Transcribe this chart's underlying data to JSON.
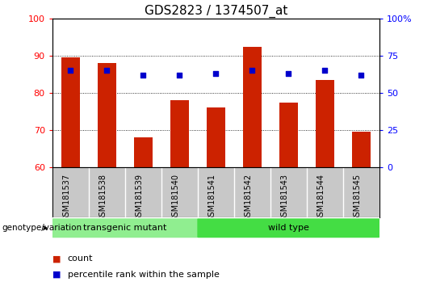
{
  "title": "GDS2823 / 1374507_at",
  "samples": [
    "GSM181537",
    "GSM181538",
    "GSM181539",
    "GSM181540",
    "GSM181541",
    "GSM181542",
    "GSM181543",
    "GSM181544",
    "GSM181545"
  ],
  "bar_values": [
    89.5,
    88.0,
    68.0,
    78.0,
    76.0,
    92.5,
    77.5,
    83.5,
    69.5
  ],
  "dot_values_pct": [
    65,
    65,
    62,
    62,
    63,
    65,
    63,
    65,
    62
  ],
  "ylim_left": [
    60,
    100
  ],
  "ylim_right": [
    0,
    100
  ],
  "yticks_left": [
    60,
    70,
    80,
    90,
    100
  ],
  "yticks_right": [
    0,
    25,
    50,
    75,
    100
  ],
  "ytick_labels_right": [
    "0",
    "25",
    "50",
    "75",
    "100%"
  ],
  "bar_color": "#cc2200",
  "dot_color": "#0000cc",
  "bar_width": 0.5,
  "groups": [
    {
      "label": "transgenic mutant",
      "start": 0,
      "end": 3,
      "color": "#90ee90"
    },
    {
      "label": "wild type",
      "start": 4,
      "end": 8,
      "color": "#44dd44"
    }
  ],
  "group_label": "genotype/variation",
  "legend_bar_label": "count",
  "legend_dot_label": "percentile rank within the sample",
  "bg_color": "#ffffff",
  "plot_bg_color": "#ffffff",
  "tick_area_color": "#c8c8c8",
  "grid_color": "#000000",
  "title_fontsize": 11,
  "tick_fontsize": 8,
  "label_fontsize": 8
}
